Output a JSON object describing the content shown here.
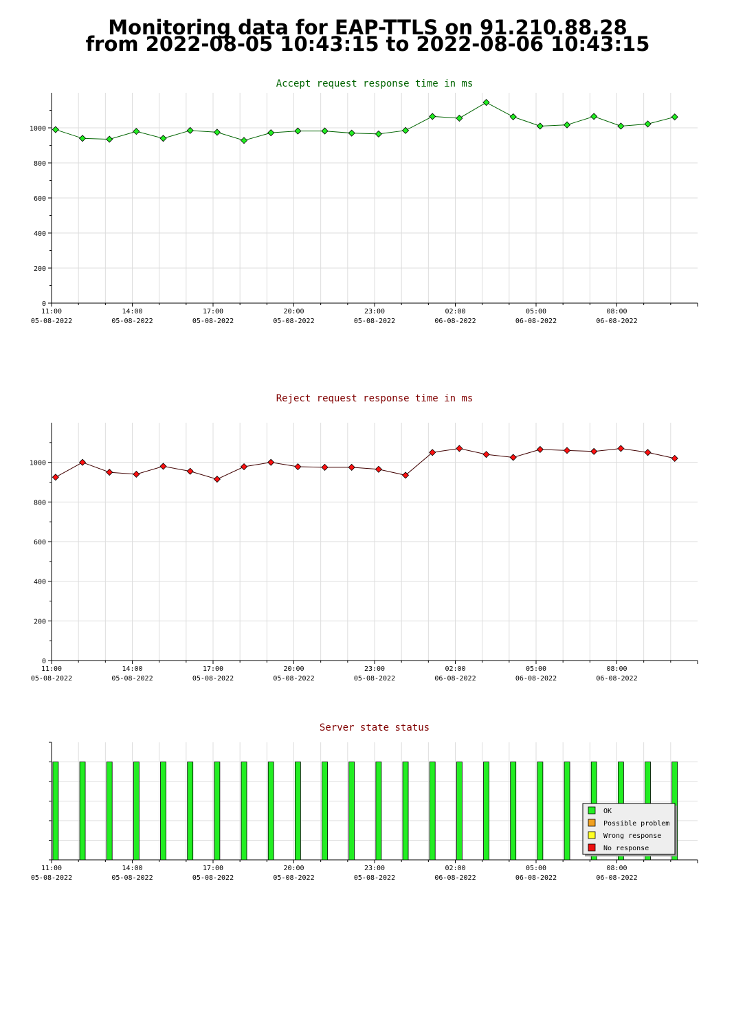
{
  "page": {
    "title_line1": "Monitoring data for EAP-TTLS on 91.210.88.28",
    "title_line2": "from 2022-08-05 10:43:15 to 2022-08-06 10:43:15"
  },
  "colors": {
    "accept_title": "#006400",
    "reject_title": "#800000",
    "status_title": "#800000",
    "accept_line": "#006400",
    "reject_line": "#400000",
    "accept_marker": "#22ee22",
    "reject_marker": "#ff1111",
    "ok": "#22ee22",
    "possible_problem": "#f0a020",
    "wrong_response": "#ffff22",
    "no_response": "#ee1111",
    "grid": "#dddddd"
  },
  "x_axis": {
    "ticks": [
      {
        "time": "11:00",
        "date": "05-08-2022"
      },
      {
        "time": "14:00",
        "date": "05-08-2022"
      },
      {
        "time": "17:00",
        "date": "05-08-2022"
      },
      {
        "time": "20:00",
        "date": "05-08-2022"
      },
      {
        "time": "23:00",
        "date": "05-08-2022"
      },
      {
        "time": "02:00",
        "date": "06-08-2022"
      },
      {
        "time": "05:00",
        "date": "06-08-2022"
      },
      {
        "time": "08:00",
        "date": "06-08-2022"
      }
    ]
  },
  "chart_data": [
    {
      "type": "line",
      "title": "Accept request response time in ms",
      "ylim": [
        0,
        1200
      ],
      "yticks": [
        0,
        200,
        400,
        600,
        800,
        1000
      ],
      "series": [
        {
          "values": [
            990,
            940,
            935,
            980,
            940,
            985,
            975,
            928,
            972,
            982,
            982,
            970,
            965,
            985,
            1065,
            1055,
            1145,
            1063,
            1010,
            1017,
            1065,
            1010,
            1022,
            1062
          ]
        }
      ]
    },
    {
      "type": "line",
      "title": "Reject request response time in ms",
      "ylim": [
        0,
        1200
      ],
      "yticks": [
        0,
        200,
        400,
        600,
        800,
        1000
      ],
      "series": [
        {
          "values": [
            925,
            1000,
            950,
            940,
            980,
            955,
            915,
            978,
            1000,
            978,
            975,
            975,
            965,
            935,
            1050,
            1070,
            1040,
            1025,
            1065,
            1060,
            1055,
            1070,
            1050,
            1020
          ]
        }
      ]
    },
    {
      "type": "bar",
      "title": "Server state status",
      "ylim": [
        0,
        1.2
      ],
      "series": [
        {
          "name": "OK",
          "values": [
            1,
            1,
            1,
            1,
            1,
            1,
            1,
            1,
            1,
            1,
            1,
            1,
            1,
            1,
            1,
            1,
            1,
            1,
            1,
            1,
            1,
            1,
            1,
            1
          ]
        }
      ],
      "legend": {
        "position": "bottom-right",
        "entries": [
          "OK",
          "Possible problem",
          "Wrong response",
          "No response"
        ]
      }
    }
  ]
}
